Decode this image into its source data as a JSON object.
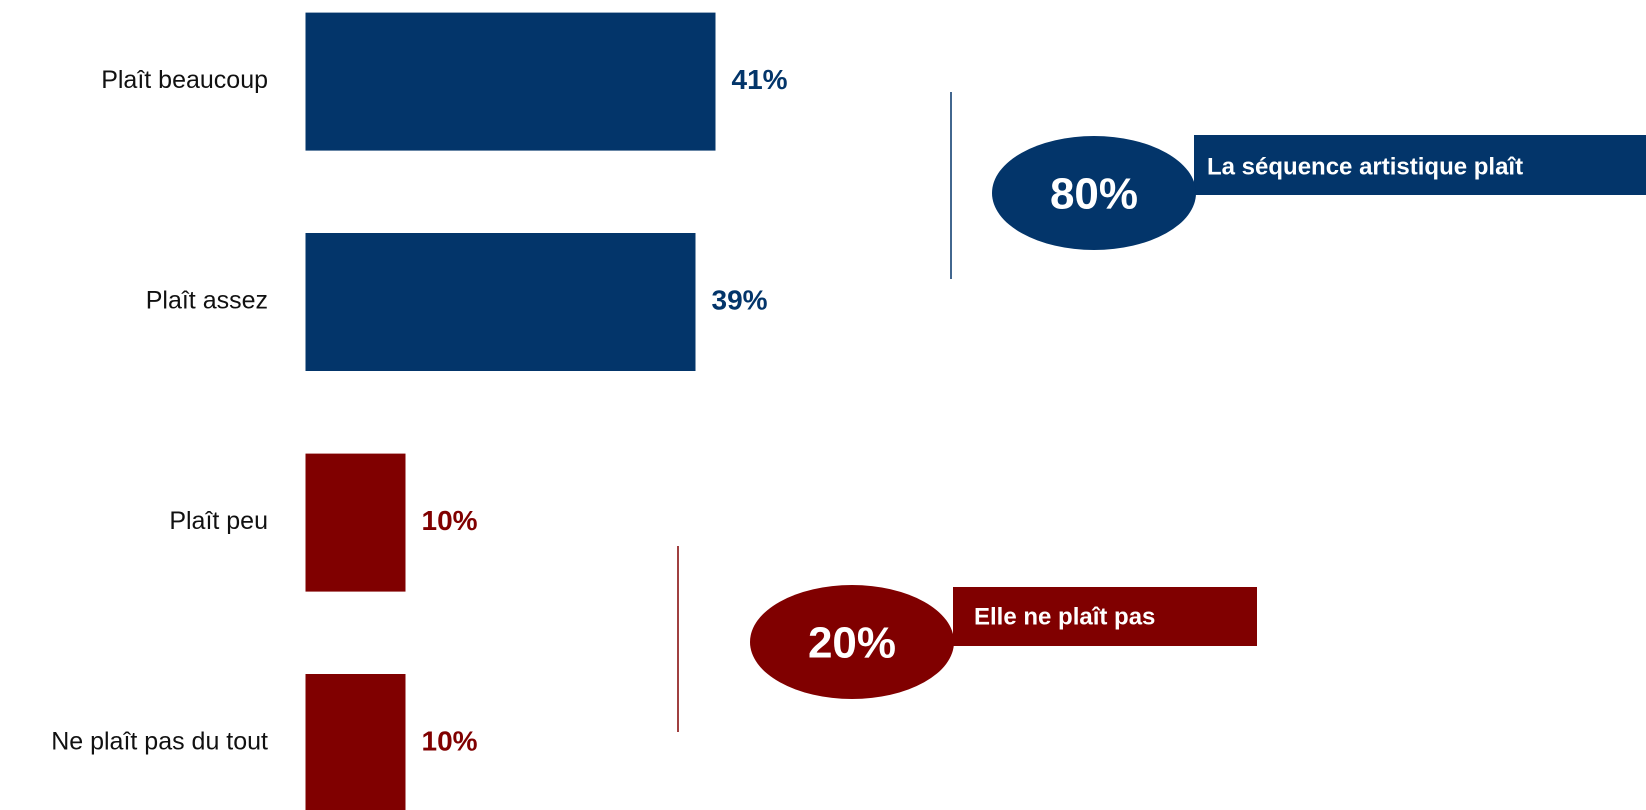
{
  "chart_data": {
    "type": "barh",
    "categories": [
      "Plaît beaucoup",
      "Plaît assez",
      "Plaît peu",
      "Ne plaît pas du tout"
    ],
    "values": [
      41,
      39,
      10,
      10
    ],
    "value_labels": [
      "41%",
      "39%",
      "10%",
      "10%"
    ],
    "colors": [
      "#03356a",
      "#03356a",
      "#800000",
      "#800000"
    ],
    "annotations": [
      {
        "label": "80%",
        "text": "La séquence artistique plaît",
        "color": "#03356a"
      },
      {
        "label": "20%",
        "text": "Elle ne plaît pas",
        "color": "#800000"
      }
    ]
  }
}
